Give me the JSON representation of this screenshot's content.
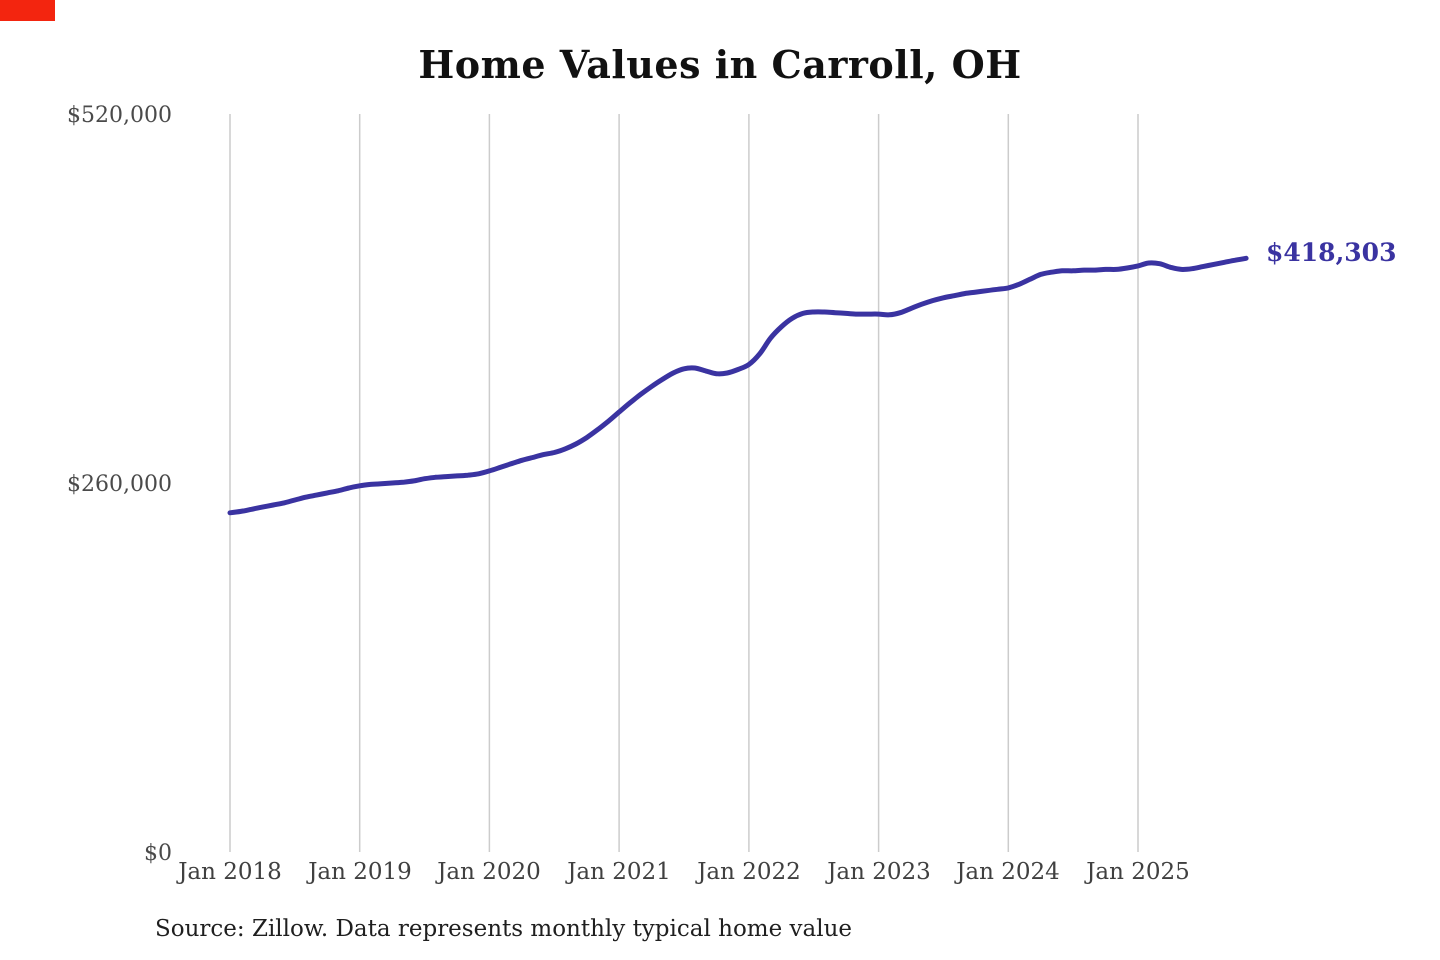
{
  "page": {
    "background_color": "#ffffff"
  },
  "recording_indicator": {
    "color": "#f3250f"
  },
  "chart_data": {
    "type": "line",
    "title": "Home Values in Carroll, OH",
    "series_name": "Monthly typical home value",
    "start_month": "Jan 2018",
    "end_month": "Nov 2025",
    "frequency": "monthly",
    "current_value": 418303,
    "current_value_label": "$418,303",
    "ylim": [
      0,
      520000
    ],
    "grid": "vertical-only",
    "legend_position": "none",
    "y_ticks": [
      {
        "value": 0,
        "label": "$0"
      },
      {
        "value": 260000,
        "label": "$260,000"
      },
      {
        "value": 520000,
        "label": "$520,000"
      }
    ],
    "x_ticks": [
      {
        "label": "Jan 2018",
        "month_index": 0
      },
      {
        "label": "Jan 2019",
        "month_index": 12
      },
      {
        "label": "Jan 2020",
        "month_index": 24
      },
      {
        "label": "Jan 2021",
        "month_index": 36
      },
      {
        "label": "Jan 2022",
        "month_index": 48
      },
      {
        "label": "Jan 2023",
        "month_index": 60
      },
      {
        "label": "Jan 2024",
        "month_index": 72
      },
      {
        "label": "Jan 2025",
        "month_index": 84
      }
    ],
    "values": [
      239000,
      240000,
      241500,
      243000,
      244500,
      246000,
      248000,
      250000,
      251500,
      253000,
      254500,
      256500,
      258000,
      259000,
      259500,
      260000,
      260500,
      261500,
      263000,
      264000,
      264500,
      265000,
      265500,
      266500,
      268500,
      271000,
      273500,
      276000,
      278000,
      280000,
      281500,
      284000,
      287500,
      292000,
      297500,
      303500,
      310000,
      316500,
      322500,
      328000,
      333000,
      337500,
      340500,
      341000,
      339000,
      337000,
      337500,
      340000,
      343500,
      351000,
      362000,
      370000,
      376000,
      379500,
      380500,
      380500,
      380000,
      379500,
      379000,
      379000,
      379000,
      378500,
      380000,
      383000,
      386000,
      388500,
      390500,
      392000,
      393500,
      394500,
      395500,
      396500,
      397500,
      400000,
      403500,
      407000,
      408500,
      409500,
      409500,
      410000,
      410000,
      410500,
      410500,
      411500,
      413000,
      415000,
      414500,
      412000,
      410500,
      411000,
      412500,
      414000,
      415500,
      417000,
      418303
    ],
    "line_color": "#3a33a1",
    "grid_color": "#cccccc",
    "tick_label_color": "#4a4a4a",
    "title_color": "#111111",
    "source_note": "Source: Zillow. Data represents monthly typical home value",
    "source_note_color": "#1f1f1f"
  }
}
